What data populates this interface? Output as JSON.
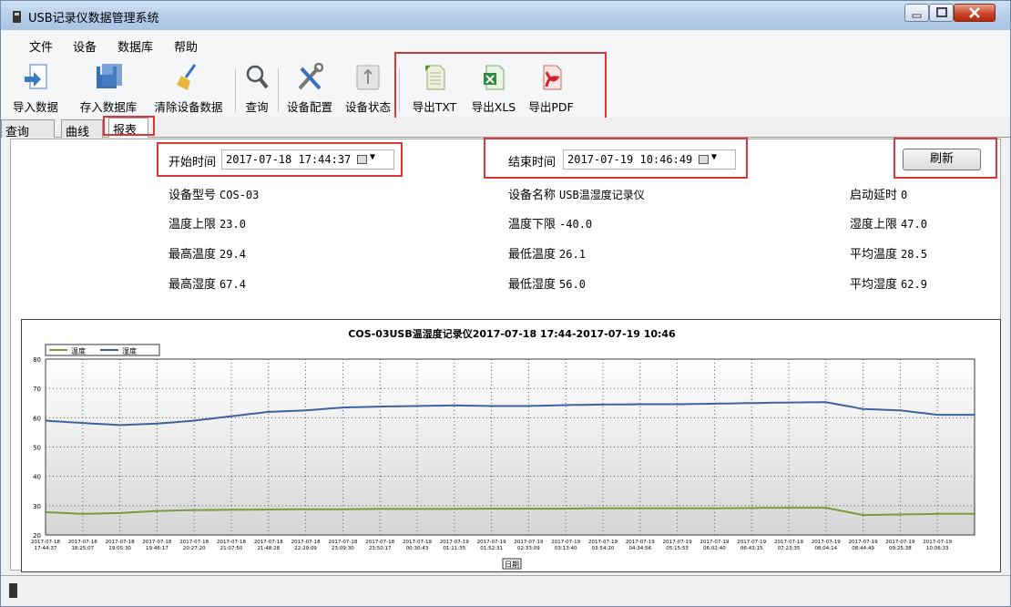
{
  "window": {
    "title": "USB记录仪数据管理系统"
  },
  "menu": [
    "文件",
    "设备",
    "数据库",
    "帮助"
  ],
  "toolbar": [
    {
      "label": "导入数据",
      "icon": "import-icon"
    },
    {
      "label": "存入数据库",
      "icon": "database-save-icon"
    },
    {
      "label": "清除设备数据",
      "icon": "broom-icon"
    },
    {
      "label": "查询",
      "icon": "magnifier-icon"
    },
    {
      "label": "设备配置",
      "icon": "tools-icon"
    },
    {
      "label": "设备状态",
      "icon": "usb-icon"
    },
    {
      "label": "导出TXT",
      "icon": "txt-file-icon"
    },
    {
      "label": "导出XLS",
      "icon": "xls-file-icon"
    },
    {
      "label": "导出PDF",
      "icon": "pdf-file-icon"
    }
  ],
  "tabs": [
    "查询",
    "曲线",
    "报表"
  ],
  "report": {
    "start_label": "开始时间",
    "start_value": "2017-07-18 17:44:37",
    "end_label": "结束时间",
    "end_value": "2017-07-19 10:46:49",
    "refresh": "刷新",
    "rows": [
      [
        {
          "label": "设备型号",
          "value": "COS-03"
        },
        {
          "label": "设备名称",
          "value": "USB温湿度记录仪"
        },
        {
          "label": "启动延时",
          "value": "0"
        }
      ],
      [
        {
          "label": "温度上限",
          "value": "23.0"
        },
        {
          "label": "温度下限",
          "value": "-40.0"
        },
        {
          "label": "湿度上限",
          "value": "47.0"
        }
      ],
      [
        {
          "label": "最高温度",
          "value": "29.4"
        },
        {
          "label": "最低温度",
          "value": "26.1"
        },
        {
          "label": "平均温度",
          "value": "28.5"
        }
      ],
      [
        {
          "label": "最高湿度",
          "value": "67.4"
        },
        {
          "label": "最低湿度",
          "value": "56.0"
        },
        {
          "label": "平均湿度",
          "value": "62.9"
        }
      ]
    ]
  },
  "colors": {
    "temperature": "#7a9a3c",
    "humidity": "#3a64a0",
    "highlight": "#d9383b"
  },
  "chart_data": {
    "type": "line",
    "title": "COS-03USB温湿度记录仪2017-07-18 17:44-2017-07-19 10:46",
    "xlabel": "日期",
    "ylim": [
      20,
      80
    ],
    "yticks": [
      20,
      30,
      40,
      50,
      60,
      70,
      80
    ],
    "legend": [
      "温度",
      "湿度"
    ],
    "legend_position": "top-left",
    "grid": true,
    "x": [
      "2017-07-18 17:44:37",
      "2017-07-18 18:25:07",
      "2017-07-18 19:05:30",
      "2017-07-18 19:46:17",
      "2017-07-18 20:27:20",
      "2017-07-18 21:07:50",
      "2017-07-18 21:48:28",
      "2017-07-18 22:29:09",
      "2017-07-18 23:09:30",
      "2017-07-18 23:50:17",
      "2017-07-19 00:30:43",
      "2017-07-19 01:11:35",
      "2017-07-19 01:52:31",
      "2017-07-19 02:33:09",
      "2017-07-19 03:13:40",
      "2017-07-19 03:54:20",
      "2017-07-19 04:34:56",
      "2017-07-19 05:15:53",
      "2017-07-19 06:02:40",
      "2017-07-19 06:43:15",
      "2017-07-19 07:23:35",
      "2017-07-19 08:04:14",
      "2017-07-19 08:44:49",
      "2017-07-19 09:25:38",
      "2017-07-19 10:06:33"
    ],
    "series": [
      {
        "name": "温度",
        "values": [
          27.8,
          27.2,
          27.5,
          28.2,
          28.5,
          28.6,
          28.7,
          28.8,
          28.8,
          28.9,
          28.9,
          28.9,
          29.0,
          29.0,
          29.0,
          29.1,
          29.1,
          29.1,
          29.1,
          29.2,
          29.3,
          29.3,
          26.8,
          27.0,
          27.2
        ]
      },
      {
        "name": "湿度",
        "values": [
          59.0,
          58.2,
          57.5,
          58.0,
          59.0,
          60.5,
          62.0,
          62.5,
          63.5,
          63.8,
          64.0,
          64.2,
          64.0,
          64.0,
          64.3,
          64.5,
          64.6,
          64.6,
          64.8,
          65.0,
          65.2,
          65.3,
          63.0,
          62.5,
          61.0
        ]
      }
    ]
  },
  "status": {
    "icon": "usb-device-icon"
  }
}
